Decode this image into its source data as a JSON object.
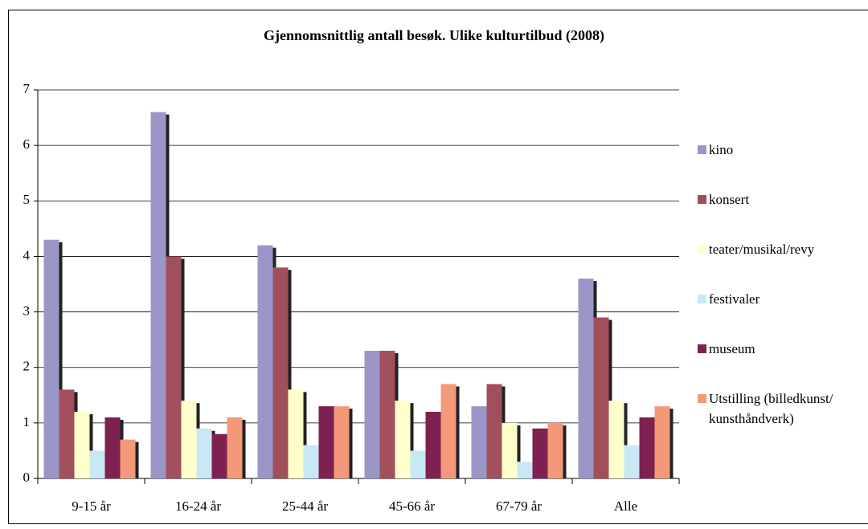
{
  "chart_data": {
    "type": "bar",
    "title": "Gjennomsnittlig antall besøk. Ulike kulturtilbud (2008)",
    "categories": [
      "9-15 år",
      "16-24 år",
      "25-44 år",
      "45-66 år",
      "67-79 år",
      "Alle"
    ],
    "series": [
      {
        "name": "kino",
        "color": "#9b96c8",
        "values": [
          4.3,
          6.6,
          4.2,
          2.3,
          1.3,
          3.6
        ]
      },
      {
        "name": "konsert",
        "color": "#a24f5c",
        "values": [
          1.6,
          4.0,
          3.8,
          2.3,
          1.7,
          2.9
        ]
      },
      {
        "name": "teater/musikal/revy",
        "color": "#ffffcc",
        "values": [
          1.2,
          1.4,
          1.6,
          1.4,
          1.0,
          1.4
        ]
      },
      {
        "name": "festivaler",
        "color": "#c8e8f6",
        "values": [
          0.5,
          0.9,
          0.6,
          0.5,
          0.3,
          0.6
        ]
      },
      {
        "name": "museum",
        "color": "#7e2150",
        "values": [
          1.1,
          0.8,
          1.3,
          1.2,
          0.9,
          1.1
        ]
      },
      {
        "name": "Utstilling (billedkunst/ kunsthåndverk)",
        "color": "#f4987a",
        "values": [
          0.7,
          1.1,
          1.3,
          1.7,
          1.0,
          1.3
        ]
      }
    ],
    "ylim": [
      0,
      7
    ],
    "yticks": [
      0,
      1,
      2,
      3,
      4,
      5,
      6,
      7
    ],
    "grid": true,
    "legend": "right"
  }
}
